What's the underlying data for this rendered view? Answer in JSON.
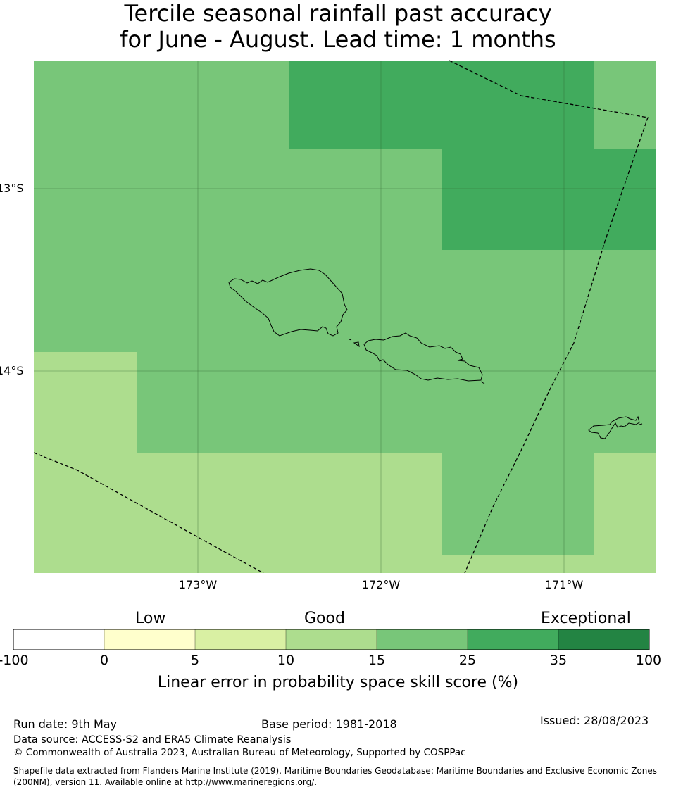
{
  "title": {
    "line1": "Tercile seasonal rainfall past accuracy",
    "line2": "for June - August. Lead time: 1 months"
  },
  "map": {
    "lat_labels": [
      "13°S",
      "14°S"
    ],
    "lon_labels": [
      "173°W",
      "172°W",
      "171°W"
    ]
  },
  "colorbar": {
    "categories": [
      "Low",
      "Good",
      "Exceptional"
    ],
    "ticks": [
      "-100",
      "0",
      "5",
      "10",
      "15",
      "25",
      "35",
      "100"
    ],
    "colors": [
      "#ffffff",
      "#ffffcc",
      "#d9f0a3",
      "#addd8e",
      "#78c679",
      "#41ab5d",
      "#238443"
    ],
    "label": "Linear error in probability space skill score (%)"
  },
  "footer": {
    "run_date": "Run date: 9th May",
    "base_period": "Base period: 1981-2018",
    "issued": "Issued: 28/08/2023",
    "data_source": "Data source: ACCESS-S2 and ERA5 Climate Reanalysis",
    "copyright": "© Commonwealth of Australia 2023, Australian Bureau of Meteorology, Supported by COSPPac",
    "shapefile_line1": "Shapefile data extracted from Flanders Marine Institute (2019), Maritime Boundaries Geodatabase: Maritime Boundaries and Exclusive Economic Zones",
    "shapefile_line2": "(200NM), version 11. Available online at http://www.marineregions.org/."
  }
}
